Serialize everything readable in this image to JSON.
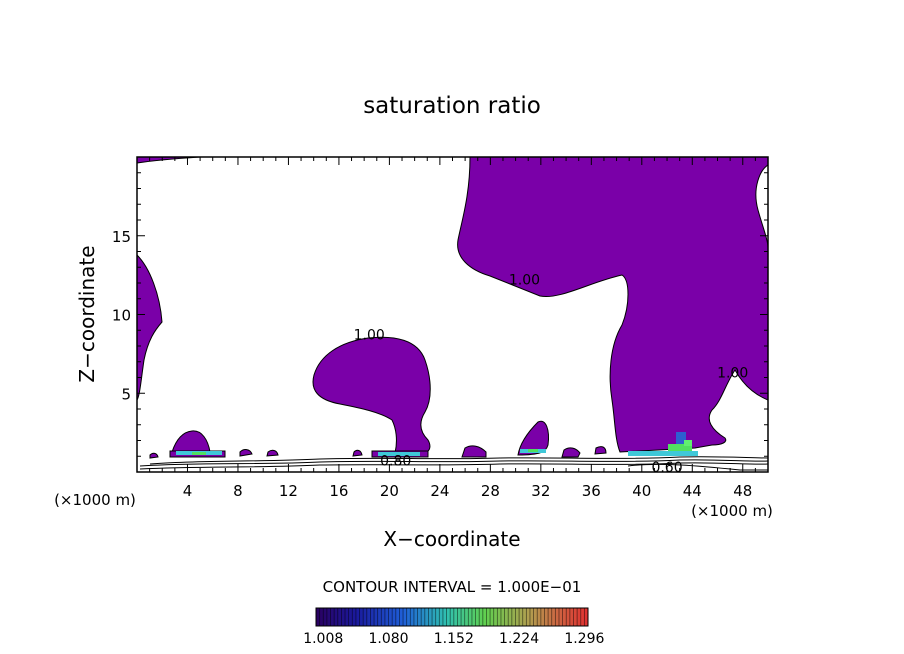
{
  "chart_data": {
    "type": "contour",
    "title": "saturation ratio",
    "xlabel": "X−coordinate",
    "ylabel": "Z−coordinate",
    "x_unit_left": "(×1000 m)",
    "x_unit_right": "(×1000 m)",
    "xlim": [
      0,
      50
    ],
    "ylim": [
      0,
      20
    ],
    "x_ticks": [
      {
        "value": 4,
        "label": "4"
      },
      {
        "value": 8,
        "label": "8"
      },
      {
        "value": 12,
        "label": "12"
      },
      {
        "value": 16,
        "label": "16"
      },
      {
        "value": 20,
        "label": "20"
      },
      {
        "value": 24,
        "label": "24"
      },
      {
        "value": 28,
        "label": "28"
      },
      {
        "value": 32,
        "label": "32"
      },
      {
        "value": 36,
        "label": "36"
      },
      {
        "value": 40,
        "label": "40"
      },
      {
        "value": 44,
        "label": "44"
      },
      {
        "value": 48,
        "label": "48"
      }
    ],
    "y_ticks": [
      {
        "value": 5,
        "label": "5"
      },
      {
        "value": 10,
        "label": "10"
      },
      {
        "value": 15,
        "label": "15"
      }
    ],
    "contour_labels": [
      {
        "x": 30.7,
        "y": 11.9,
        "label": "1.00"
      },
      {
        "x": 18.4,
        "y": 8.4,
        "label": "1.00"
      },
      {
        "x": 47.2,
        "y": 6.0,
        "label": "1.00"
      },
      {
        "x": 20.5,
        "y": 0.4,
        "label": "0.80"
      },
      {
        "x": 42.0,
        "y": 0.0,
        "label": "0.60"
      }
    ],
    "contour_interval_text": "CONTOUR INTERVAL = 1.000E−01",
    "colorbar": {
      "min": 1.0,
      "max": 1.3,
      "tick_labels": [
        "1.008",
        "1.080",
        "1.152",
        "1.224",
        "1.296"
      ]
    },
    "colors": {
      "fill_main": "#7a00a8",
      "high_cyan": "#3fc8d8",
      "high_green": "#50e060"
    }
  }
}
